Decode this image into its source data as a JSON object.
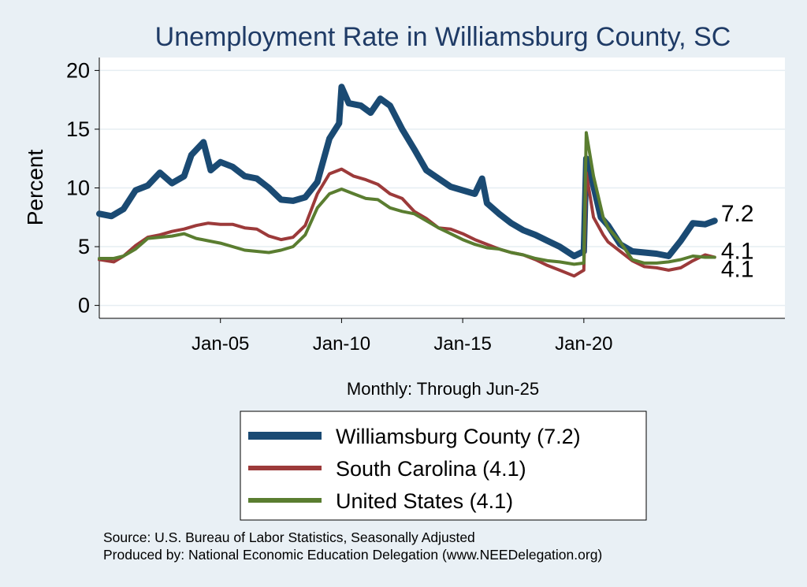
{
  "colors": {
    "background": "#e9f0f5",
    "plot_background": "#ffffff",
    "title": "#1f3b66",
    "county": "#1a4a73",
    "state": "#9c3a3a",
    "us": "#5a7d30",
    "grid": "#e6eef2"
  },
  "chart_data": {
    "type": "line",
    "title": "Unemployment Rate in Williamsburg  County, SC",
    "xlabel": "Monthly: Through Jun-25",
    "ylabel": "Percent",
    "xlim": [
      2000.0,
      2028.3
    ],
    "ylim": [
      -1.1,
      21.1
    ],
    "yticks": [
      0,
      5,
      10,
      15,
      20
    ],
    "xticks": [
      {
        "value": 2005.0,
        "label": "Jan-05"
      },
      {
        "value": 2010.0,
        "label": "Jan-10"
      },
      {
        "value": 2015.0,
        "label": "Jan-15"
      },
      {
        "value": 2020.0,
        "label": "Jan-20"
      }
    ],
    "series": [
      {
        "name": "Williamsburg  County",
        "legend": "Williamsburg  County (7.2)",
        "last_label": "7.2",
        "color": "#1a4a73",
        "points": [
          [
            2000.0,
            7.8
          ],
          [
            2000.5,
            7.6
          ],
          [
            2001.0,
            8.2
          ],
          [
            2001.5,
            9.8
          ],
          [
            2002.0,
            10.2
          ],
          [
            2002.5,
            11.3
          ],
          [
            2003.0,
            10.4
          ],
          [
            2003.5,
            11.0
          ],
          [
            2003.8,
            12.8
          ],
          [
            2004.3,
            13.9
          ],
          [
            2004.6,
            11.5
          ],
          [
            2005.0,
            12.2
          ],
          [
            2005.5,
            11.8
          ],
          [
            2006.0,
            11.0
          ],
          [
            2006.5,
            10.8
          ],
          [
            2007.0,
            10.0
          ],
          [
            2007.5,
            9.0
          ],
          [
            2008.0,
            8.9
          ],
          [
            2008.5,
            9.2
          ],
          [
            2009.0,
            10.5
          ],
          [
            2009.5,
            14.2
          ],
          [
            2009.9,
            15.5
          ],
          [
            2010.0,
            18.6
          ],
          [
            2010.3,
            17.2
          ],
          [
            2010.8,
            17.0
          ],
          [
            2011.2,
            16.4
          ],
          [
            2011.6,
            17.6
          ],
          [
            2012.0,
            17.0
          ],
          [
            2012.5,
            15.0
          ],
          [
            2013.0,
            13.3
          ],
          [
            2013.5,
            11.5
          ],
          [
            2014.0,
            10.8
          ],
          [
            2014.5,
            10.1
          ],
          [
            2015.0,
            9.8
          ],
          [
            2015.5,
            9.5
          ],
          [
            2015.8,
            10.8
          ],
          [
            2016.0,
            8.7
          ],
          [
            2016.5,
            7.8
          ],
          [
            2017.0,
            7.0
          ],
          [
            2017.5,
            6.4
          ],
          [
            2018.0,
            6.0
          ],
          [
            2018.5,
            5.5
          ],
          [
            2019.0,
            5.0
          ],
          [
            2019.6,
            4.2
          ],
          [
            2020.0,
            4.6
          ],
          [
            2020.1,
            12.5
          ],
          [
            2020.3,
            11.0
          ],
          [
            2020.7,
            7.5
          ],
          [
            2021.0,
            6.8
          ],
          [
            2021.5,
            5.2
          ],
          [
            2022.0,
            4.6
          ],
          [
            2022.5,
            4.5
          ],
          [
            2023.0,
            4.4
          ],
          [
            2023.5,
            4.2
          ],
          [
            2024.0,
            5.5
          ],
          [
            2024.5,
            7.0
          ],
          [
            2025.0,
            6.9
          ],
          [
            2025.4,
            7.2
          ]
        ]
      },
      {
        "name": "South Carolina",
        "legend": "South Carolina (4.1)",
        "last_label": "4.1",
        "color": "#9c3a3a",
        "points": [
          [
            2000.0,
            3.9
          ],
          [
            2000.6,
            3.7
          ],
          [
            2001.0,
            4.2
          ],
          [
            2001.5,
            5.1
          ],
          [
            2002.0,
            5.8
          ],
          [
            2002.5,
            6.0
          ],
          [
            2003.0,
            6.3
          ],
          [
            2003.5,
            6.5
          ],
          [
            2004.0,
            6.8
          ],
          [
            2004.5,
            7.0
          ],
          [
            2005.0,
            6.9
          ],
          [
            2005.5,
            6.9
          ],
          [
            2006.0,
            6.6
          ],
          [
            2006.5,
            6.5
          ],
          [
            2007.0,
            5.9
          ],
          [
            2007.5,
            5.6
          ],
          [
            2008.0,
            5.8
          ],
          [
            2008.5,
            6.8
          ],
          [
            2009.0,
            9.5
          ],
          [
            2009.5,
            11.2
          ],
          [
            2010.0,
            11.6
          ],
          [
            2010.5,
            11.0
          ],
          [
            2011.0,
            10.7
          ],
          [
            2011.5,
            10.3
          ],
          [
            2012.0,
            9.5
          ],
          [
            2012.5,
            9.1
          ],
          [
            2013.0,
            8.0
          ],
          [
            2013.5,
            7.4
          ],
          [
            2014.0,
            6.6
          ],
          [
            2014.5,
            6.5
          ],
          [
            2015.0,
            6.1
          ],
          [
            2015.5,
            5.6
          ],
          [
            2016.0,
            5.2
          ],
          [
            2016.5,
            4.8
          ],
          [
            2017.0,
            4.5
          ],
          [
            2017.5,
            4.3
          ],
          [
            2018.0,
            3.9
          ],
          [
            2018.5,
            3.4
          ],
          [
            2019.0,
            3.0
          ],
          [
            2019.6,
            2.5
          ],
          [
            2020.0,
            3.0
          ],
          [
            2020.1,
            11.3
          ],
          [
            2020.4,
            7.5
          ],
          [
            2020.8,
            6.0
          ],
          [
            2021.0,
            5.4
          ],
          [
            2021.5,
            4.6
          ],
          [
            2022.0,
            3.8
          ],
          [
            2022.5,
            3.3
          ],
          [
            2023.0,
            3.2
          ],
          [
            2023.5,
            3.0
          ],
          [
            2024.0,
            3.2
          ],
          [
            2024.5,
            3.8
          ],
          [
            2025.0,
            4.3
          ],
          [
            2025.4,
            4.1
          ]
        ]
      },
      {
        "name": "United States",
        "legend": "United States (4.1)",
        "last_label": "4.1",
        "color": "#5a7d30",
        "points": [
          [
            2000.0,
            4.0
          ],
          [
            2000.6,
            4.0
          ],
          [
            2001.0,
            4.2
          ],
          [
            2001.5,
            4.8
          ],
          [
            2002.0,
            5.7
          ],
          [
            2002.5,
            5.8
          ],
          [
            2003.0,
            5.9
          ],
          [
            2003.5,
            6.1
          ],
          [
            2004.0,
            5.7
          ],
          [
            2004.5,
            5.5
          ],
          [
            2005.0,
            5.3
          ],
          [
            2005.5,
            5.0
          ],
          [
            2006.0,
            4.7
          ],
          [
            2006.5,
            4.6
          ],
          [
            2007.0,
            4.5
          ],
          [
            2007.5,
            4.7
          ],
          [
            2008.0,
            5.0
          ],
          [
            2008.5,
            6.0
          ],
          [
            2009.0,
            8.3
          ],
          [
            2009.5,
            9.5
          ],
          [
            2010.0,
            9.9
          ],
          [
            2010.5,
            9.5
          ],
          [
            2011.0,
            9.1
          ],
          [
            2011.5,
            9.0
          ],
          [
            2012.0,
            8.3
          ],
          [
            2012.5,
            8.0
          ],
          [
            2013.0,
            7.8
          ],
          [
            2013.5,
            7.2
          ],
          [
            2014.0,
            6.6
          ],
          [
            2014.5,
            6.1
          ],
          [
            2015.0,
            5.6
          ],
          [
            2015.5,
            5.2
          ],
          [
            2016.0,
            4.9
          ],
          [
            2016.5,
            4.8
          ],
          [
            2017.0,
            4.5
          ],
          [
            2017.5,
            4.3
          ],
          [
            2018.0,
            4.0
          ],
          [
            2018.5,
            3.8
          ],
          [
            2019.0,
            3.7
          ],
          [
            2019.6,
            3.5
          ],
          [
            2020.0,
            3.6
          ],
          [
            2020.1,
            14.7
          ],
          [
            2020.4,
            11.0
          ],
          [
            2020.8,
            7.5
          ],
          [
            2021.0,
            6.6
          ],
          [
            2021.5,
            5.4
          ],
          [
            2022.0,
            3.9
          ],
          [
            2022.5,
            3.6
          ],
          [
            2023.0,
            3.6
          ],
          [
            2023.5,
            3.7
          ],
          [
            2024.0,
            3.9
          ],
          [
            2024.5,
            4.2
          ],
          [
            2025.0,
            4.1
          ],
          [
            2025.4,
            4.1
          ]
        ]
      }
    ]
  },
  "source": {
    "line1": "Source: U.S. Bureau of Labor Statistics, Seasonally Adjusted",
    "line2": "Produced by: National Economic Education Delegation (www.NEEDelegation.org)"
  }
}
